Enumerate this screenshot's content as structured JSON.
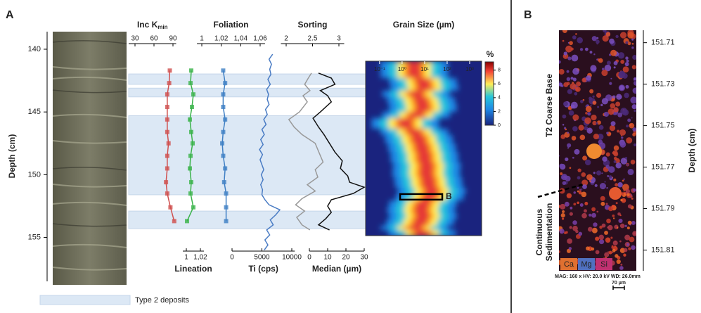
{
  "panel_labels": [
    "A",
    "B"
  ],
  "depth_axis": {
    "label": "Depth (cm)",
    "ylim": [
      138.6,
      158.5
    ],
    "yticks": [
      140,
      145,
      150,
      155
    ]
  },
  "legend": {
    "label": "Type 2 deposits",
    "color": "#dce8f5"
  },
  "type2_deposits": [
    [
      141.97,
      142.8
    ],
    [
      143.1,
      143.8
    ],
    [
      145.3,
      151.6
    ],
    [
      152.9,
      154.3
    ]
  ],
  "chart_data": [
    {
      "type": "line",
      "title": "Inc K",
      "subscript": "min",
      "axis": "top",
      "color": "#d0504f",
      "markers": true,
      "xlim": [
        20,
        95
      ],
      "xticks": [
        30,
        60,
        90
      ],
      "y": [
        141.7,
        142.7,
        143.6,
        144.6,
        145.6,
        146.6,
        147.5,
        148.5,
        149.5,
        150.6,
        151.5,
        152.6,
        153.7
      ],
      "values": [
        85,
        84,
        81,
        81,
        81,
        81,
        83,
        81,
        81,
        79,
        81,
        86,
        92
      ]
    },
    {
      "type": "line",
      "title": "Lineation",
      "axis": "bottom",
      "color": "#3ab34a",
      "markers": true,
      "xlim": [
        0.995,
        1.025
      ],
      "xticks": [
        1,
        {
          "value": 1.02,
          "label": "1,02"
        }
      ],
      "y": [
        141.7,
        142.7,
        143.6,
        144.6,
        145.6,
        146.6,
        147.5,
        148.5,
        149.5,
        150.6,
        151.5,
        152.6,
        153.7
      ],
      "values": [
        1.007,
        1.006,
        1.01,
        1.008,
        1.005,
        1.007,
        1.009,
        1.006,
        1.005,
        1.007,
        1.006,
        1.01,
        1.001
      ]
    },
    {
      "type": "line",
      "title": "Foliation",
      "axis": "top",
      "color": "#3f7fc4",
      "markers": true,
      "xlim": [
        0.995,
        1.065
      ],
      "xticks": [
        1,
        {
          "value": 1.02,
          "label": "1,02"
        },
        {
          "value": 1.04,
          "label": "1,04"
        },
        {
          "value": 1.06,
          "label": "1,06"
        }
      ],
      "y": [
        141.7,
        142.7,
        143.6,
        144.6,
        145.6,
        146.6,
        147.5,
        148.5,
        149.5,
        150.6,
        151.5,
        152.6,
        153.7
      ],
      "values": [
        1.022,
        1.024,
        1.022,
        1.022,
        1.024,
        1.022,
        1.021,
        1.022,
        1.024,
        1.023,
        1.025,
        1.025,
        1.025
      ]
    },
    {
      "type": "line",
      "title": "Ti (cps)",
      "axis": "bottom",
      "color": "#4a7cc4",
      "markers": false,
      "xlim": [
        0,
        10500
      ],
      "xticks": [
        0,
        5000,
        10000
      ],
      "y": [
        140.4,
        140.8,
        141.2,
        141.6,
        142.0,
        142.4,
        142.8,
        143.2,
        143.6,
        144.0,
        144.4,
        144.8,
        145.2,
        145.6,
        146.0,
        146.4,
        146.8,
        147.2,
        147.6,
        148.0,
        148.4,
        148.8,
        149.2,
        149.6,
        150.0,
        150.4,
        150.8,
        151.2,
        151.6,
        152.0,
        152.4,
        152.8,
        153.2,
        153.6,
        154.0,
        154.4,
        154.8,
        155.2,
        155.6,
        156.0
      ],
      "values": [
        6800,
        6200,
        6600,
        6300,
        6500,
        6000,
        6400,
        5800,
        6100,
        5900,
        6200,
        5600,
        5900,
        5300,
        5700,
        5000,
        5400,
        4800,
        5200,
        4600,
        5100,
        4700,
        5000,
        5300,
        4900,
        5200,
        4800,
        5100,
        5000,
        5500,
        6200,
        8000,
        7300,
        6400,
        6900,
        5800,
        6300,
        5500,
        6000,
        5400
      ]
    },
    {
      "type": "line",
      "title": "Sorting",
      "axis": "top",
      "color": "#999999",
      "markers": false,
      "xlim": [
        1.9,
        3.1
      ],
      "xticks": [
        2,
        2.5,
        3
      ],
      "y": [
        141.9,
        142.3,
        142.8,
        143.3,
        143.7,
        144.2,
        145.0,
        145.6,
        146.2,
        146.8,
        147.5,
        148.2,
        149.0,
        149.6,
        150.2,
        150.8,
        151.3,
        151.9,
        152.4,
        152.9,
        153.4,
        154.0,
        154.4
      ],
      "values": [
        2.48,
        2.42,
        2.35,
        2.45,
        2.32,
        2.4,
        2.25,
        2.05,
        2.15,
        2.3,
        2.55,
        2.62,
        2.7,
        2.55,
        2.6,
        2.4,
        2.55,
        2.3,
        2.18,
        2.35,
        2.2,
        2.3,
        2.45
      ]
    },
    {
      "type": "line",
      "title": "Median (µm)",
      "axis": "bottom",
      "color": "#111111",
      "markers": false,
      "xlim": [
        0,
        30
      ],
      "xticks": [
        0,
        10,
        20,
        30
      ],
      "y": [
        141.9,
        142.3,
        142.8,
        143.3,
        143.7,
        144.2,
        145.0,
        145.5,
        146.2,
        146.8,
        147.5,
        148.2,
        148.9,
        149.5,
        150.1,
        150.6,
        151.0,
        151.5,
        152.0,
        152.5,
        153.0,
        153.5,
        154.0,
        154.4
      ],
      "values": [
        5,
        12,
        14,
        6,
        10,
        12,
        6,
        2,
        5,
        8,
        11,
        14,
        18,
        17,
        21,
        22,
        30,
        24,
        12,
        10,
        12,
        9,
        5,
        11
      ]
    },
    {
      "type": "heatmap",
      "title": "Grain Size (µm)",
      "log_x": true,
      "xlim": [
        0.024,
        3400
      ],
      "ylim": [
        140.96,
        154.9
      ],
      "xticks": [
        {
          "value": 0.1,
          "label": "10⁻¹"
        },
        {
          "value": 1,
          "label": "10⁰"
        },
        {
          "value": 10,
          "label": "10¹"
        },
        {
          "value": 100,
          "label": "10²"
        },
        {
          "value": 1000,
          "label": "10³"
        }
      ],
      "colorbar": {
        "title": "%",
        "lim": [
          0,
          9.2
        ],
        "ticks": [
          0,
          2,
          4,
          6,
          8
        ]
      },
      "marker_label": "B",
      "marker_depth": 151.8
    }
  ],
  "panel_b": {
    "depth_label": "Depth (cm)",
    "ylim": [
      151.704,
      151.82
    ],
    "yticks": [
      151.71,
      151.73,
      151.75,
      151.77,
      151.79,
      151.81
    ],
    "upper_label": "T2 Coarse Base",
    "lower_label": [
      "Continuous",
      "Sedimentation"
    ],
    "elements": [
      "Ca",
      "Mg",
      "Si"
    ],
    "info": "MAG: 160 x  HV: 20.0 kV  WD: 26.0mm",
    "scale": "70 µm"
  }
}
